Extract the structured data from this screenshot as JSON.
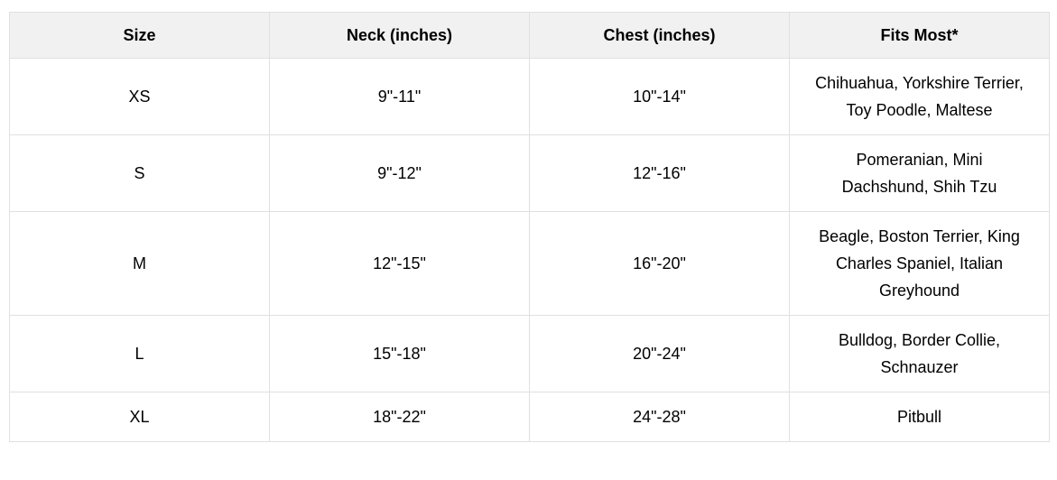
{
  "table": {
    "title": "dog-size-chart",
    "columns": [
      {
        "label": "Size"
      },
      {
        "label": "Neck (inches)"
      },
      {
        "label": "Chest (inches)"
      },
      {
        "label": "Fits Most*"
      }
    ],
    "rows": [
      {
        "size": "XS",
        "neck": "9\"-11\"",
        "chest": "10\"-14\"",
        "fits_most": "Chihuahua, Yorkshire Terrier, Toy Poodle, Maltese"
      },
      {
        "size": "S",
        "neck": "9\"-12\"",
        "chest": "12\"-16\"",
        "fits_most": "Pomeranian, Mini Dachshund, Shih Tzu"
      },
      {
        "size": "M",
        "neck": "12\"-15\"",
        "chest": "16\"-20\"",
        "fits_most": "Beagle, Boston Terrier, King Charles Spaniel, Italian Greyhound"
      },
      {
        "size": "L",
        "neck": "15\"-18\"",
        "chest": "20\"-24\"",
        "fits_most": "Bulldog, Border Collie, Schnauzer"
      },
      {
        "size": "XL",
        "neck": "18\"-22\"",
        "chest": "24\"-28\"",
        "fits_most": "Pitbull"
      }
    ]
  },
  "colors": {
    "header_bg": "#f1f1f1",
    "border": "#e0e0e0",
    "text": "#000000",
    "page_bg": "#ffffff"
  }
}
